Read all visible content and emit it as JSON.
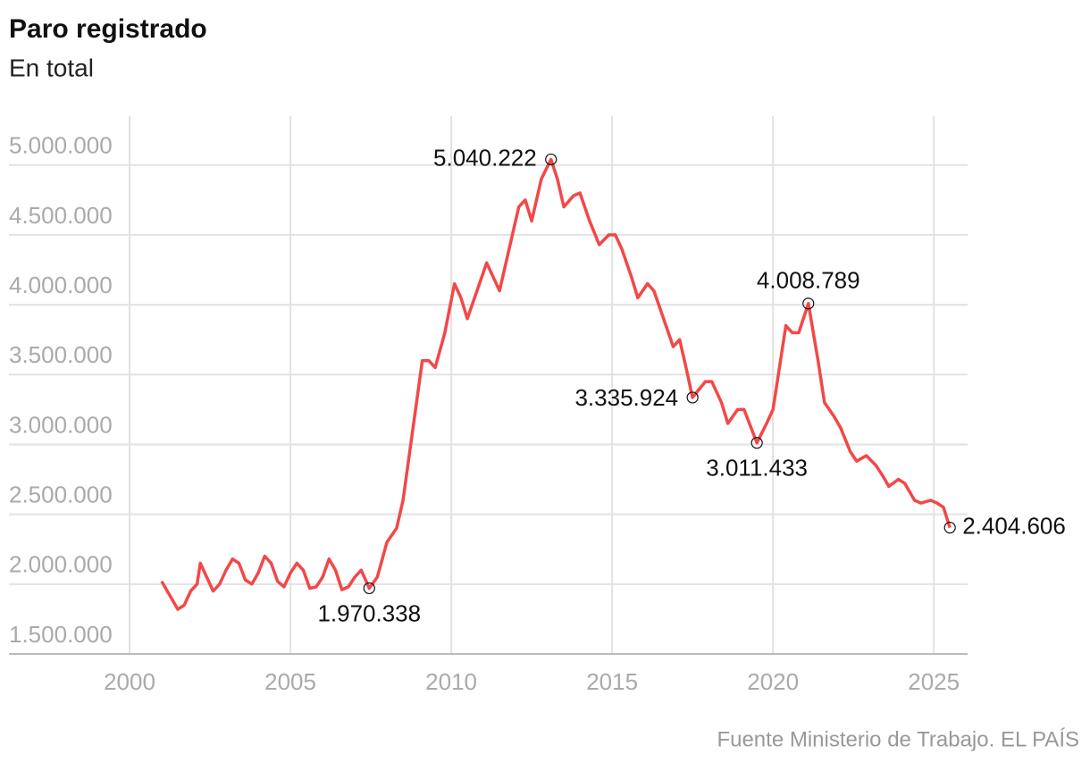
{
  "chart_data": {
    "type": "line",
    "title": "Paro registrado",
    "subtitle": "En total",
    "source": "Fuente Ministerio de Trabajo. EL PAÍS",
    "color": "#f24848",
    "x": [
      2001.0,
      2001.3,
      2001.5,
      2001.7,
      2001.9,
      2002.1,
      2002.2,
      2002.4,
      2002.6,
      2002.8,
      2003.0,
      2003.2,
      2003.4,
      2003.6,
      2003.8,
      2004.0,
      2004.2,
      2004.4,
      2004.6,
      2004.8,
      2005.0,
      2005.2,
      2005.4,
      2005.6,
      2005.8,
      2006.0,
      2006.2,
      2006.4,
      2006.6,
      2006.8,
      2007.0,
      2007.2,
      2007.45,
      2007.7,
      2008.0,
      2008.3,
      2008.5,
      2008.8,
      2009.1,
      2009.3,
      2009.5,
      2009.8,
      2010.1,
      2010.3,
      2010.5,
      2010.8,
      2011.1,
      2011.3,
      2011.5,
      2011.8,
      2012.1,
      2012.3,
      2012.5,
      2012.8,
      2013.1,
      2013.3,
      2013.5,
      2013.8,
      2014.0,
      2014.3,
      2014.6,
      2014.9,
      2015.1,
      2015.3,
      2015.6,
      2015.8,
      2016.1,
      2016.3,
      2016.6,
      2016.9,
      2017.1,
      2017.3,
      2017.5,
      2017.9,
      2018.1,
      2018.4,
      2018.6,
      2018.9,
      2019.1,
      2019.5,
      2019.8,
      2020.0,
      2020.2,
      2020.4,
      2020.6,
      2020.8,
      2021.1,
      2021.4,
      2021.6,
      2021.9,
      2022.1,
      2022.4,
      2022.6,
      2022.9,
      2023.2,
      2023.4,
      2023.6,
      2023.9,
      2024.1,
      2024.4,
      2024.6,
      2024.9,
      2025.1,
      2025.3,
      2025.5
    ],
    "values": [
      2020000,
      1900000,
      1820000,
      1850000,
      1950000,
      2000000,
      2150000,
      2050000,
      1950000,
      2000000,
      2100000,
      2180000,
      2150000,
      2030000,
      2000000,
      2080000,
      2200000,
      2150000,
      2020000,
      1980000,
      2080000,
      2150000,
      2100000,
      1970000,
      1980000,
      2050000,
      2180000,
      2100000,
      1960000,
      1980000,
      2050000,
      2100000,
      1970338,
      2050000,
      2300000,
      2400000,
      2600000,
      3100000,
      3600000,
      3600000,
      3550000,
      3800000,
      4150000,
      4050000,
      3900000,
      4100000,
      4300000,
      4200000,
      4100000,
      4400000,
      4700000,
      4750000,
      4600000,
      4900000,
      5040222,
      4900000,
      4700000,
      4780000,
      4800000,
      4600000,
      4430000,
      4500000,
      4500000,
      4400000,
      4200000,
      4050000,
      4150000,
      4100000,
      3900000,
      3700000,
      3750000,
      3550000,
      3335924,
      3450000,
      3450000,
      3300000,
      3150000,
      3250000,
      3250000,
      3011433,
      3150000,
      3250000,
      3550000,
      3850000,
      3800000,
      3800000,
      4008789,
      3600000,
      3300000,
      3200000,
      3120000,
      2950000,
      2880000,
      2920000,
      2850000,
      2780000,
      2700000,
      2750000,
      2720000,
      2600000,
      2580000,
      2600000,
      2580000,
      2550000,
      2404606
    ],
    "xlim": [
      1996.25,
      2026.05
    ],
    "ylim": [
      1500000,
      5350000
    ],
    "xticks": [
      2000,
      2005,
      2010,
      2015,
      2020,
      2025
    ],
    "yticks": [
      {
        "value": 1500000,
        "label": "1.500.000"
      },
      {
        "value": 2000000,
        "label": "2.000.000"
      },
      {
        "value": 2500000,
        "label": "2.500.000"
      },
      {
        "value": 3000000,
        "label": "3.000.000"
      },
      {
        "value": 3500000,
        "label": "3.500.000"
      },
      {
        "value": 4000000,
        "label": "4.000.000"
      },
      {
        "value": 4500000,
        "label": "4.500.000"
      },
      {
        "value": 5000000,
        "label": "5.000.000"
      }
    ],
    "grid": true,
    "annotations": [
      {
        "x": 2007.45,
        "y": 1970338,
        "label": "1.970.338"
      },
      {
        "x": 2013.1,
        "y": 5040222,
        "label": "5.040.222"
      },
      {
        "x": 2017.5,
        "y": 3335924,
        "label": "3.335.924"
      },
      {
        "x": 2019.5,
        "y": 3011433,
        "label": "3.011.433"
      },
      {
        "x": 2021.1,
        "y": 4008789,
        "label": "4.008.789"
      },
      {
        "x": 2025.5,
        "y": 2404606,
        "label": "2.404.606"
      }
    ]
  }
}
